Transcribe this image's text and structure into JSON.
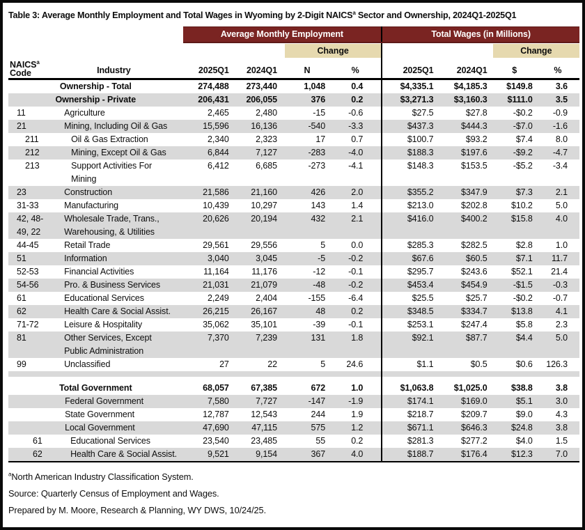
{
  "page": {
    "title_pre": "Table 3: Average Monthly Employment and Total Wages in Wyoming by 2-Digit NAICS",
    "title_sup": "a",
    "title_post": " Sector and Ownership, 2024Q1-2025Q1"
  },
  "colors": {
    "maroon_header": "#7A2422",
    "tan_change": "#E6D9AF",
    "row_shade": "#D9D9D9"
  },
  "table": {
    "group_headers": {
      "employment": "Average Monthly Employment",
      "wages": "Total Wages (in Millions)",
      "change": "Change"
    },
    "column_headers": {
      "naics_line1": "NAICS",
      "naics_sup": "a",
      "naics_line2": "Code",
      "industry": "Industry",
      "emp_2025": "2025Q1",
      "emp_2024": "2024Q1",
      "emp_n": "N",
      "emp_pct": "%",
      "wage_2025": "2025Q1",
      "wage_2024": "2024Q1",
      "wage_dollar": "$",
      "wage_pct": "%"
    },
    "rows": [
      {
        "style": "total",
        "shade": false,
        "code": "",
        "industry": "Ownership - Total",
        "e2025": "274,488",
        "e2024": "273,440",
        "n": "1,048",
        "npct": "0.4",
        "w2025": "$4,335.1",
        "w2024": "$4,185.3",
        "wchg": "$149.8",
        "wpct": "3.6"
      },
      {
        "style": "total",
        "shade": true,
        "code": "",
        "industry": "Ownership - Private",
        "e2025": "206,431",
        "e2024": "206,055",
        "n": "376",
        "npct": "0.2",
        "w2025": "$3,271.3",
        "w2024": "$3,160.3",
        "wchg": "$111.0",
        "wpct": "3.5"
      },
      {
        "style": "sector",
        "shade": false,
        "code": "11",
        "industry": "Agriculture",
        "e2025": "2,465",
        "e2024": "2,480",
        "n": "-15",
        "npct": "-0.6",
        "w2025": "$27.5",
        "w2024": "$27.8",
        "wchg": "-$0.2",
        "wpct": "-0.9"
      },
      {
        "style": "sector",
        "shade": true,
        "code": "21",
        "industry": "Mining, Including Oil & Gas",
        "e2025": "15,596",
        "e2024": "16,136",
        "n": "-540",
        "npct": "-3.3",
        "w2025": "$437.3",
        "w2024": "$444.3",
        "wchg": "-$7.0",
        "wpct": "-1.6"
      },
      {
        "style": "sub",
        "shade": false,
        "code": "211",
        "industry": "Oil & Gas Extraction",
        "e2025": "2,340",
        "e2024": "2,323",
        "n": "17",
        "npct": "0.7",
        "w2025": "$100.7",
        "w2024": "$93.2",
        "wchg": "$7.4",
        "wpct": "8.0"
      },
      {
        "style": "sub",
        "shade": true,
        "code": "212",
        "industry": "Mining, Except Oil & Gas",
        "e2025": "6,844",
        "e2024": "7,127",
        "n": "-283",
        "npct": "-4.0",
        "w2025": "$188.3",
        "w2024": "$197.6",
        "wchg": "-$9.2",
        "wpct": "-4.7"
      },
      {
        "style": "sub",
        "shade": false,
        "code": "213",
        "industry": "Support Activities For\nMining",
        "e2025": "6,412",
        "e2024": "6,685",
        "n": "-273",
        "npct": "-4.1",
        "w2025": "$148.3",
        "w2024": "$153.5",
        "wchg": "-$5.2",
        "wpct": "-3.4"
      },
      {
        "style": "sector",
        "shade": true,
        "code": "23",
        "industry": "Construction",
        "e2025": "21,586",
        "e2024": "21,160",
        "n": "426",
        "npct": "2.0",
        "w2025": "$355.2",
        "w2024": "$347.9",
        "wchg": "$7.3",
        "wpct": "2.1"
      },
      {
        "style": "sector",
        "shade": false,
        "code": "31-33",
        "industry": "Manufacturing",
        "e2025": "10,439",
        "e2024": "10,297",
        "n": "143",
        "npct": "1.4",
        "w2025": "$213.0",
        "w2024": "$202.8",
        "wchg": "$10.2",
        "wpct": "5.0"
      },
      {
        "style": "sector",
        "shade": true,
        "code": "42, 48-\n49, 22",
        "industry": "Wholesale Trade, Trans.,\nWarehousing, & Utilities",
        "e2025": "20,626",
        "e2024": "20,194",
        "n": "432",
        "npct": "2.1",
        "w2025": "$416.0",
        "w2024": "$400.2",
        "wchg": "$15.8",
        "wpct": "4.0"
      },
      {
        "style": "sector",
        "shade": false,
        "code": "44-45",
        "industry": "Retail Trade",
        "e2025": "29,561",
        "e2024": "29,556",
        "n": "5",
        "npct": "0.0",
        "w2025": "$285.3",
        "w2024": "$282.5",
        "wchg": "$2.8",
        "wpct": "1.0"
      },
      {
        "style": "sector",
        "shade": true,
        "code": "51",
        "industry": "Information",
        "e2025": "3,040",
        "e2024": "3,045",
        "n": "-5",
        "npct": "-0.2",
        "w2025": "$67.6",
        "w2024": "$60.5",
        "wchg": "$7.1",
        "wpct": "11.7"
      },
      {
        "style": "sector",
        "shade": false,
        "code": "52-53",
        "industry": "Financial Activities",
        "e2025": "11,164",
        "e2024": "11,176",
        "n": "-12",
        "npct": "-0.1",
        "w2025": "$295.7",
        "w2024": "$243.6",
        "wchg": "$52.1",
        "wpct": "21.4"
      },
      {
        "style": "sector",
        "shade": true,
        "code": "54-56",
        "industry": "Pro. & Business Services",
        "e2025": "21,031",
        "e2024": "21,079",
        "n": "-48",
        "npct": "-0.2",
        "w2025": "$453.4",
        "w2024": "$454.9",
        "wchg": "-$1.5",
        "wpct": "-0.3"
      },
      {
        "style": "sector",
        "shade": false,
        "code": "61",
        "industry": "Educational Services",
        "e2025": "2,249",
        "e2024": "2,404",
        "n": "-155",
        "npct": "-6.4",
        "w2025": "$25.5",
        "w2024": "$25.7",
        "wchg": "-$0.2",
        "wpct": "-0.7"
      },
      {
        "style": "sector",
        "shade": true,
        "code": "62",
        "industry": "Health Care & Social Assist.",
        "e2025": "26,215",
        "e2024": "26,167",
        "n": "48",
        "npct": "0.2",
        "w2025": "$348.5",
        "w2024": "$334.7",
        "wchg": "$13.8",
        "wpct": "4.1"
      },
      {
        "style": "sector",
        "shade": false,
        "code": "71-72",
        "industry": "Leisure & Hospitality",
        "e2025": "35,062",
        "e2024": "35,101",
        "n": "-39",
        "npct": "-0.1",
        "w2025": "$253.1",
        "w2024": "$247.4",
        "wchg": "$5.8",
        "wpct": "2.3"
      },
      {
        "style": "sector",
        "shade": true,
        "code": "81",
        "industry": "Other Services, Except\nPublic Administration",
        "e2025": "7,370",
        "e2024": "7,239",
        "n": "131",
        "npct": "1.8",
        "w2025": "$92.1",
        "w2024": "$87.7",
        "wchg": "$4.4",
        "wpct": "5.0"
      },
      {
        "style": "sector",
        "shade": false,
        "code": "99",
        "industry": "Unclassified",
        "e2025": "27",
        "e2024": "22",
        "n": "5",
        "npct": "24.6",
        "w2025": "$1.1",
        "w2024": "$0.5",
        "wchg": "$0.6",
        "wpct": "126.3"
      },
      {
        "style": "spacer-gray"
      },
      {
        "style": "spacer-white"
      },
      {
        "style": "total",
        "shade": false,
        "code": "",
        "industry": "Total Government",
        "e2025": "68,057",
        "e2024": "67,385",
        "n": "672",
        "npct": "1.0",
        "w2025": "$1,063.8",
        "w2024": "$1,025.0",
        "wchg": "$38.8",
        "wpct": "3.8"
      },
      {
        "style": "gov",
        "shade": true,
        "code": "",
        "industry": "Federal Government",
        "e2025": "7,580",
        "e2024": "7,727",
        "n": "-147",
        "npct": "-1.9",
        "w2025": "$174.1",
        "w2024": "$169.0",
        "wchg": "$5.1",
        "wpct": "3.0"
      },
      {
        "style": "gov",
        "shade": false,
        "code": "",
        "industry": "State Government",
        "e2025": "12,787",
        "e2024": "12,543",
        "n": "244",
        "npct": "1.9",
        "w2025": "$218.7",
        "w2024": "$209.7",
        "wchg": "$9.0",
        "wpct": "4.3"
      },
      {
        "style": "gov",
        "shade": true,
        "code": "",
        "industry": "Local Government",
        "e2025": "47,690",
        "e2024": "47,115",
        "n": "575",
        "npct": "1.2",
        "w2025": "$671.1",
        "w2024": "$646.3",
        "wchg": "$24.8",
        "wpct": "3.8"
      },
      {
        "style": "govsub",
        "shade": false,
        "code": "61",
        "industry": "Educational Services",
        "e2025": "23,540",
        "e2024": "23,485",
        "n": "55",
        "npct": "0.2",
        "w2025": "$281.3",
        "w2024": "$277.2",
        "wchg": "$4.0",
        "wpct": "1.5"
      },
      {
        "style": "govsub",
        "shade": true,
        "code": "62",
        "industry": "Health Care & Social Assist.",
        "e2025": "9,521",
        "e2024": "9,154",
        "n": "367",
        "npct": "4.0",
        "w2025": "$188.7",
        "w2024": "$176.4",
        "wchg": "$12.3",
        "wpct": "7.0"
      }
    ],
    "footnotes": {
      "naics_sup": "a",
      "naics_text": "North American Industry Classification System.",
      "source": "Source: Quarterly Census of Employment and Wages.",
      "prepared": "Prepared by M. Moore, Research & Planning, WY DWS, 10/24/25."
    }
  }
}
